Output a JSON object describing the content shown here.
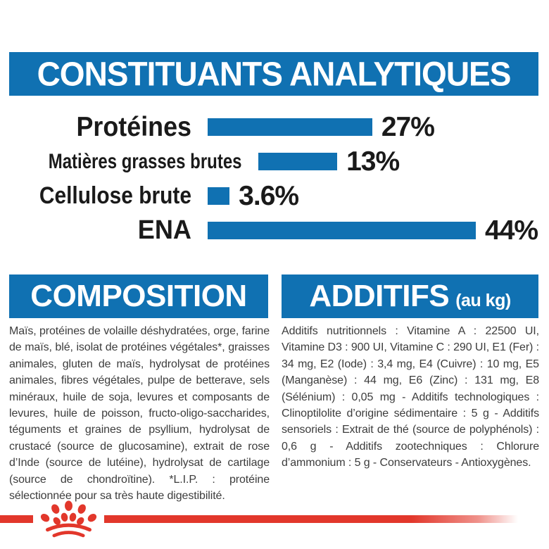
{
  "header": {
    "title": "CONSTITUANTS ANALYTIQUES"
  },
  "chart_data": {
    "type": "bar",
    "orientation": "horizontal",
    "title": "CONSTITUANTS ANALYTIQUES",
    "categories": [
      "Protéines",
      "Matières grasses brutes",
      "Cellulose brute",
      "ENA"
    ],
    "values": [
      27,
      13,
      3.6,
      44
    ],
    "value_labels": [
      "27%",
      "13%",
      "3.6%",
      "44%"
    ],
    "unit": "%",
    "xlim": [
      0,
      50
    ],
    "grid": false,
    "legend": false,
    "bar_color": "#1071B2"
  },
  "sections": {
    "composition": {
      "title": "COMPOSITION",
      "text": "Maïs, protéines de volaille déshydratées, orge, farine de maïs, blé, isolat de protéines végétales*, graisses animales, gluten de maïs, hydrolysat de protéines animales, fibres végétales, pulpe de betterave, sels minéraux, huile de soja, levures et composants de levures, huile de poisson, fructo-oligo-saccharides, téguments et graines de psyllium, hydrolysat de crustacé (source de glucosamine), extrait de rose d’Inde (source de lutéine), hydrolysat de cartilage (source de chondroïtine). *L.I.P. : protéine sélectionnée pour sa très haute digestibilité."
    },
    "additifs": {
      "title": "ADDITIFS",
      "subtitle": "(au kg)",
      "text": "Additifs nutritionnels : Vitamine A : 22500 UI, Vitamine D3 : 900 UI, Vitamine C : 290 UI, E1 (Fer) : 34 mg, E2 (Iode) : 3,4 mg, E4 (Cuivre) : 10 mg, E5 (Manganèse) : 44 mg, E6 (Zinc) : 131 mg, E8 (Sélénium) : 0,05 mg - Additifs technologiques : Clinoptilolite d’origine sédimentaire : 5 g - Additifs sensoriels : Extrait de thé (source de polyphénols) : 0,6 g - Additifs zootechniques : Chlorure d’ammonium : 5 g - Conservateurs - Antioxygènes."
    }
  },
  "logo": {
    "name": "royal-canin-crown-logo"
  },
  "colors": {
    "banner_blue": "#1071B2",
    "bar_blue": "#1071B2",
    "brand_red": "#E2372B",
    "label_text": "#1a1a1a",
    "body_text": "#3c3c3c"
  }
}
